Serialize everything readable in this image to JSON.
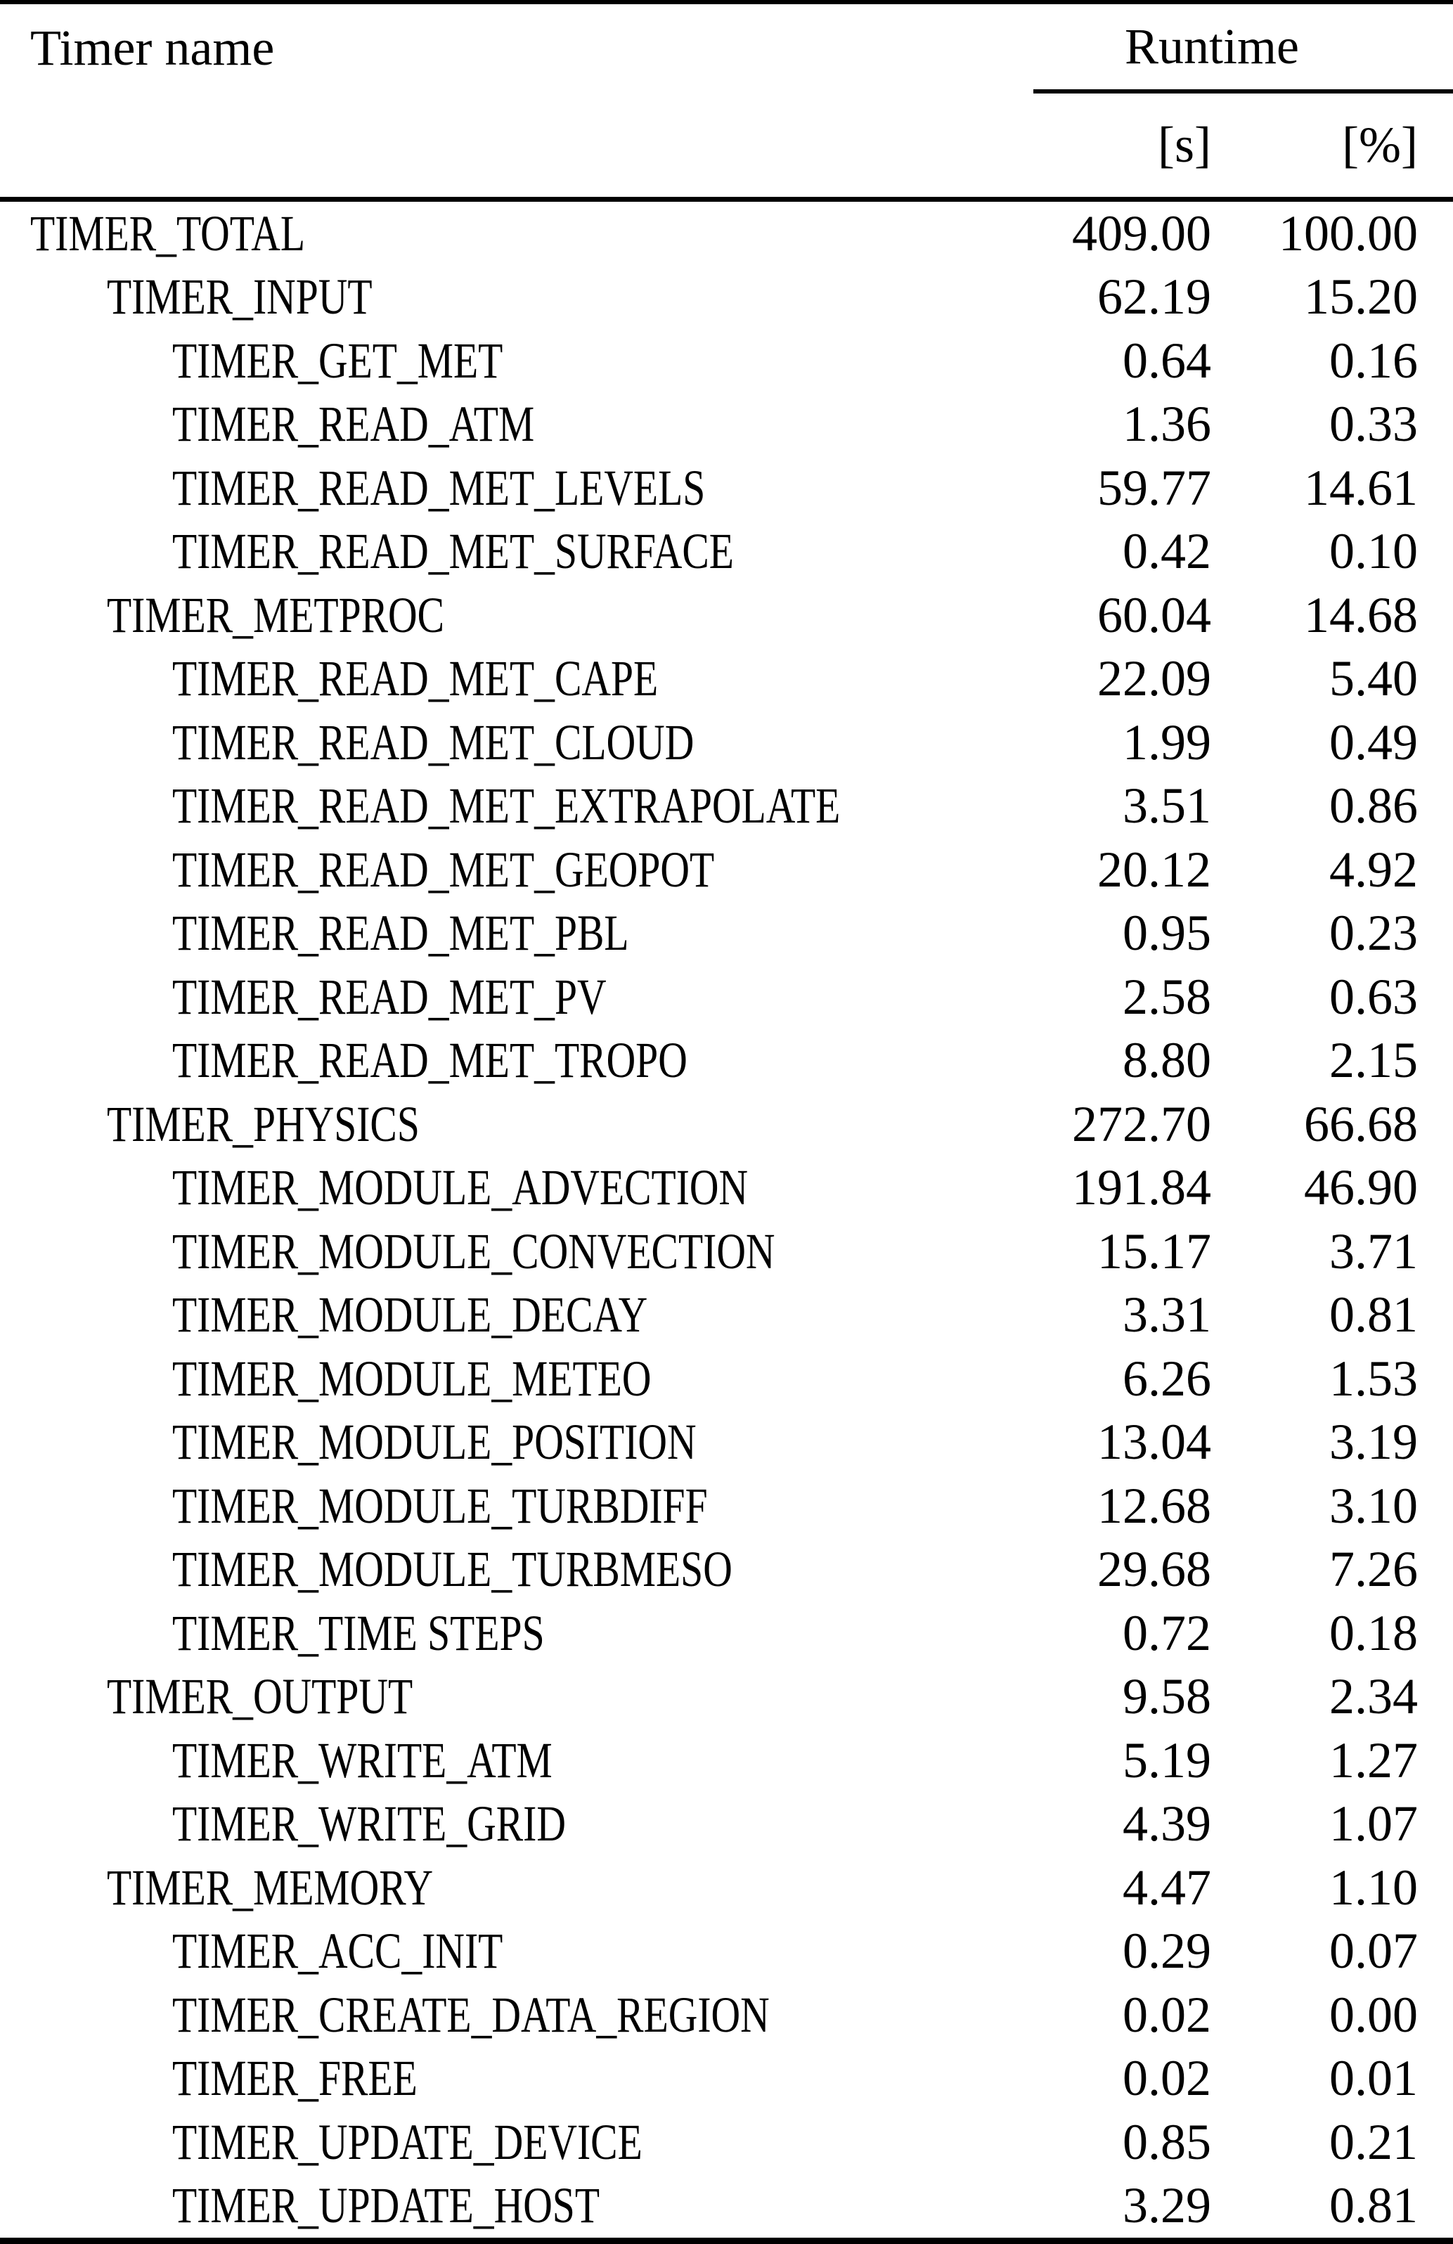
{
  "table": {
    "header": {
      "timer_name_label": "Timer name",
      "runtime_label": "Runtime",
      "unit_seconds": "[s]",
      "unit_percent": "[%]"
    },
    "rows": [
      {
        "name": "TIMER_TOTAL",
        "indent": 0,
        "seconds": "409.00",
        "percent": "100.00"
      },
      {
        "name": "TIMER_INPUT",
        "indent": 1,
        "seconds": "62.19",
        "percent": "15.20"
      },
      {
        "name": "TIMER_GET_MET",
        "indent": 2,
        "seconds": "0.64",
        "percent": "0.16"
      },
      {
        "name": "TIMER_READ_ATM",
        "indent": 2,
        "seconds": "1.36",
        "percent": "0.33"
      },
      {
        "name": "TIMER_READ_MET_LEVELS",
        "indent": 2,
        "seconds": "59.77",
        "percent": "14.61"
      },
      {
        "name": "TIMER_READ_MET_SURFACE",
        "indent": 2,
        "seconds": "0.42",
        "percent": "0.10"
      },
      {
        "name": "TIMER_METPROC",
        "indent": 1,
        "seconds": "60.04",
        "percent": "14.68"
      },
      {
        "name": "TIMER_READ_MET_CAPE",
        "indent": 2,
        "seconds": "22.09",
        "percent": "5.40"
      },
      {
        "name": "TIMER_READ_MET_CLOUD",
        "indent": 2,
        "seconds": "1.99",
        "percent": "0.49"
      },
      {
        "name": "TIMER_READ_MET_EXTRAPOLATE",
        "indent": 2,
        "seconds": "3.51",
        "percent": "0.86"
      },
      {
        "name": "TIMER_READ_MET_GEOPOT",
        "indent": 2,
        "seconds": "20.12",
        "percent": "4.92"
      },
      {
        "name": "TIMER_READ_MET_PBL",
        "indent": 2,
        "seconds": "0.95",
        "percent": "0.23"
      },
      {
        "name": "TIMER_READ_MET_PV",
        "indent": 2,
        "seconds": "2.58",
        "percent": "0.63"
      },
      {
        "name": "TIMER_READ_MET_TROPO",
        "indent": 2,
        "seconds": "8.80",
        "percent": "2.15"
      },
      {
        "name": "TIMER_PHYSICS",
        "indent": 1,
        "seconds": "272.70",
        "percent": "66.68"
      },
      {
        "name": "TIMER_MODULE_ADVECTION",
        "indent": 2,
        "seconds": "191.84",
        "percent": "46.90"
      },
      {
        "name": "TIMER_MODULE_CONVECTION",
        "indent": 2,
        "seconds": "15.17",
        "percent": "3.71"
      },
      {
        "name": "TIMER_MODULE_DECAY",
        "indent": 2,
        "seconds": "3.31",
        "percent": "0.81"
      },
      {
        "name": "TIMER_MODULE_METEO",
        "indent": 2,
        "seconds": "6.26",
        "percent": "1.53"
      },
      {
        "name": "TIMER_MODULE_POSITION",
        "indent": 2,
        "seconds": "13.04",
        "percent": "3.19"
      },
      {
        "name": "TIMER_MODULE_TURBDIFF",
        "indent": 2,
        "seconds": "12.68",
        "percent": "3.10"
      },
      {
        "name": "TIMER_MODULE_TURBMESO",
        "indent": 2,
        "seconds": "29.68",
        "percent": "7.26"
      },
      {
        "name": "TIMER_TIME STEPS",
        "indent": 2,
        "seconds": "0.72",
        "percent": "0.18"
      },
      {
        "name": "TIMER_OUTPUT",
        "indent": 1,
        "seconds": "9.58",
        "percent": "2.34"
      },
      {
        "name": "TIMER_WRITE_ATM",
        "indent": 2,
        "seconds": "5.19",
        "percent": "1.27"
      },
      {
        "name": "TIMER_WRITE_GRID",
        "indent": 2,
        "seconds": "4.39",
        "percent": "1.07"
      },
      {
        "name": "TIMER_MEMORY",
        "indent": 1,
        "seconds": "4.47",
        "percent": "1.10"
      },
      {
        "name": "TIMER_ACC_INIT",
        "indent": 2,
        "seconds": "0.29",
        "percent": "0.07"
      },
      {
        "name": "TIMER_CREATE_DATA_REGION",
        "indent": 2,
        "seconds": "0.02",
        "percent": "0.00"
      },
      {
        "name": "TIMER_FREE",
        "indent": 2,
        "seconds": "0.02",
        "percent": "0.01"
      },
      {
        "name": "TIMER_UPDATE_DEVICE",
        "indent": 2,
        "seconds": "0.85",
        "percent": "0.21"
      },
      {
        "name": "TIMER_UPDATE_HOST",
        "indent": 2,
        "seconds": "3.29",
        "percent": "0.81"
      }
    ]
  }
}
